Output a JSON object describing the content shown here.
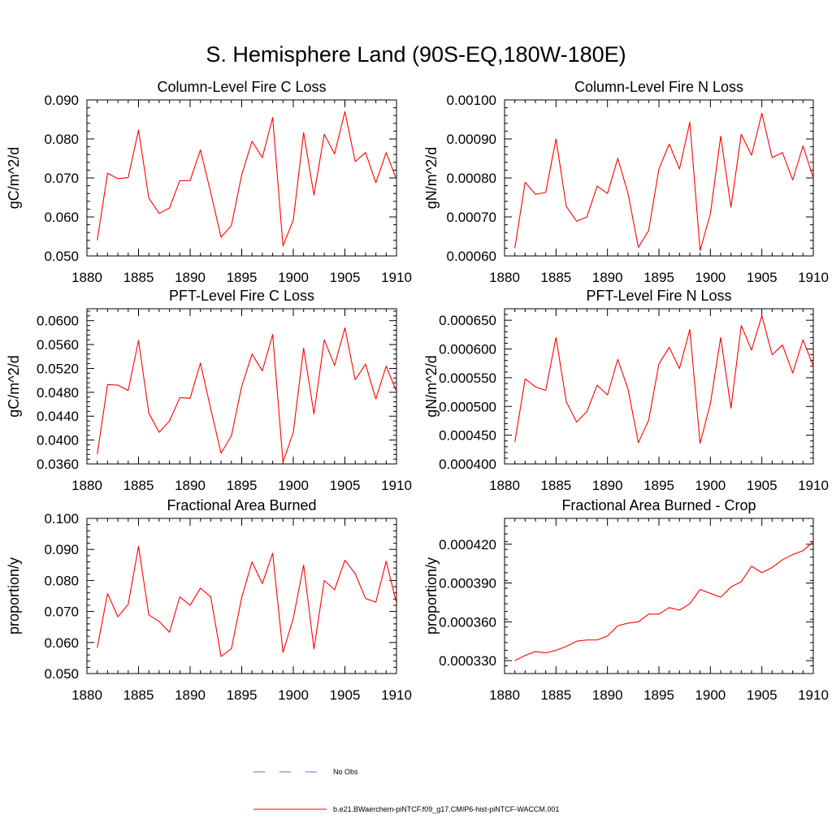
{
  "figure_title": "S. Hemisphere Land (90S-EQ,180W-180E)",
  "colors": {
    "model": "#ff0000",
    "obs": "#6a6adc",
    "axis": "#000000"
  },
  "legend": {
    "obs_label": "No Obs",
    "model_label": "b.e21.BWaerchem-piNTCF.f09_g17.CMIP6-hist-piNTCF-WACCM.001"
  },
  "chart_data": [
    {
      "type": "line",
      "title": "Column-Level Fire C Loss",
      "ylabel": "gC/m^2/d",
      "xlabel": "",
      "xlim": [
        1880,
        1910
      ],
      "ylim": [
        0.05,
        0.09
      ],
      "x_ticks": [
        "1880",
        "1885",
        "1890",
        "1895",
        "1900",
        "1905",
        "1910"
      ],
      "y_ticks": [
        "0.050",
        "0.060",
        "0.070",
        "0.080",
        "0.090"
      ],
      "x": [
        1881,
        1882,
        1883,
        1884,
        1885,
        1886,
        1887,
        1888,
        1889,
        1890,
        1891,
        1892,
        1893,
        1894,
        1895,
        1896,
        1897,
        1898,
        1899,
        1900,
        1901,
        1902,
        1903,
        1904,
        1905,
        1906,
        1907,
        1908,
        1909,
        1910
      ],
      "series": [
        {
          "values": [
            0.054,
            0.0712,
            0.0698,
            0.0701,
            0.0823,
            0.0648,
            0.0609,
            0.0623,
            0.0693,
            0.0693,
            0.0772,
            0.0662,
            0.0548,
            0.0578,
            0.0708,
            0.0794,
            0.0752,
            0.0855,
            0.0526,
            0.0592,
            0.0816,
            0.0656,
            0.0812,
            0.0762,
            0.087,
            0.0742,
            0.0765,
            0.0688,
            0.0765,
            0.0696
          ]
        }
      ]
    },
    {
      "type": "line",
      "title": "Column-Level Fire N Loss",
      "ylabel": "gN/m^2/d",
      "xlabel": "",
      "xlim": [
        1880,
        1910
      ],
      "ylim": [
        0.0006,
        0.001
      ],
      "x_ticks": [
        "1880",
        "1885",
        "1890",
        "1895",
        "1900",
        "1905",
        "1910"
      ],
      "y_ticks": [
        "0.00060",
        "0.00070",
        "0.00080",
        "0.00090",
        "0.00100"
      ],
      "x": [
        1881,
        1882,
        1883,
        1884,
        1885,
        1886,
        1887,
        1888,
        1889,
        1890,
        1891,
        1892,
        1893,
        1894,
        1895,
        1896,
        1897,
        1898,
        1899,
        1900,
        1901,
        1902,
        1903,
        1904,
        1905,
        1906,
        1907,
        1908,
        1909,
        1910
      ],
      "series": [
        {
          "values": [
            0.00062,
            0.000789,
            0.000758,
            0.000763,
            0.0009,
            0.000727,
            0.000689,
            0.0007,
            0.000779,
            0.00076,
            0.00085,
            0.00076,
            0.000622,
            0.000665,
            0.000823,
            0.000887,
            0.000823,
            0.000943,
            0.000614,
            0.000708,
            0.000907,
            0.000725,
            0.000912,
            0.000858,
            0.000966,
            0.000852,
            0.000865,
            0.000795,
            0.000882,
            0.0008
          ]
        }
      ]
    },
    {
      "type": "line",
      "title": "PFT-Level Fire C Loss",
      "ylabel": "gC/m^2/d",
      "xlabel": "",
      "xlim": [
        1880,
        1910
      ],
      "ylim": [
        0.036,
        0.062
      ],
      "x_ticks": [
        "1880",
        "1885",
        "1890",
        "1895",
        "1900",
        "1905",
        "1910"
      ],
      "y_ticks": [
        "0.0360",
        "0.0400",
        "0.0440",
        "0.0480",
        "0.0520",
        "0.0560",
        "0.0600"
      ],
      "x": [
        1881,
        1882,
        1883,
        1884,
        1885,
        1886,
        1887,
        1888,
        1889,
        1890,
        1891,
        1892,
        1893,
        1894,
        1895,
        1896,
        1897,
        1898,
        1899,
        1900,
        1901,
        1902,
        1903,
        1904,
        1905,
        1906,
        1907,
        1908,
        1909,
        1910
      ],
      "series": [
        {
          "values": [
            0.0376,
            0.0493,
            0.0492,
            0.0483,
            0.0567,
            0.0445,
            0.0413,
            0.0432,
            0.0471,
            0.047,
            0.0529,
            0.0452,
            0.0378,
            0.0407,
            0.049,
            0.0544,
            0.0516,
            0.0577,
            0.0363,
            0.0413,
            0.0554,
            0.0444,
            0.0568,
            0.0525,
            0.0588,
            0.0501,
            0.0527,
            0.0469,
            0.0524,
            0.0481
          ]
        }
      ]
    },
    {
      "type": "line",
      "title": "PFT-Level Fire N Loss",
      "ylabel": "gN/m^2/d",
      "xlabel": "",
      "xlim": [
        1880,
        1910
      ],
      "ylim": [
        0.0004,
        0.00067
      ],
      "x_ticks": [
        "1880",
        "1885",
        "1890",
        "1895",
        "1900",
        "1905",
        "1910"
      ],
      "y_ticks": [
        "0.000400",
        "0.000450",
        "0.000500",
        "0.000550",
        "0.000600",
        "0.000650"
      ],
      "x": [
        1881,
        1882,
        1883,
        1884,
        1885,
        1886,
        1887,
        1888,
        1889,
        1890,
        1891,
        1892,
        1893,
        1894,
        1895,
        1896,
        1897,
        1898,
        1899,
        1900,
        1901,
        1902,
        1903,
        1904,
        1905,
        1906,
        1907,
        1908,
        1909,
        1910
      ],
      "series": [
        {
          "values": [
            0.000438,
            0.000548,
            0.000534,
            0.000528,
            0.00062,
            0.000508,
            0.000473,
            0.000491,
            0.000537,
            0.00052,
            0.000582,
            0.00053,
            0.000437,
            0.000476,
            0.000574,
            0.000603,
            0.000566,
            0.000634,
            0.000436,
            0.000505,
            0.00062,
            0.000497,
            0.000641,
            0.000598,
            0.000658,
            0.00059,
            0.000607,
            0.000558,
            0.000616,
            0.00057
          ]
        }
      ]
    },
    {
      "type": "line",
      "title": "Fractional Area Burned",
      "ylabel": "proportion/y",
      "xlabel": "",
      "xlim": [
        1880,
        1910
      ],
      "ylim": [
        0.05,
        0.1
      ],
      "x_ticks": [
        "1880",
        "1885",
        "1890",
        "1895",
        "1900",
        "1905",
        "1910"
      ],
      "y_ticks": [
        "0.050",
        "0.060",
        "0.070",
        "0.080",
        "0.090",
        "0.100"
      ],
      "x": [
        1881,
        1882,
        1883,
        1884,
        1885,
        1886,
        1887,
        1888,
        1889,
        1890,
        1891,
        1892,
        1893,
        1894,
        1895,
        1896,
        1897,
        1898,
        1899,
        1900,
        1901,
        1902,
        1903,
        1904,
        1905,
        1906,
        1907,
        1908,
        1909,
        1910
      ],
      "series": [
        {
          "values": [
            0.0583,
            0.0758,
            0.0683,
            0.0723,
            0.091,
            0.0689,
            0.0668,
            0.0633,
            0.0747,
            0.072,
            0.0775,
            0.0747,
            0.0555,
            0.058,
            0.0745,
            0.086,
            0.079,
            0.0888,
            0.0568,
            0.0678,
            0.085,
            0.0579,
            0.08,
            0.077,
            0.0865,
            0.0822,
            0.0742,
            0.073,
            0.0862,
            0.0727
          ]
        }
      ]
    },
    {
      "type": "line",
      "title": "Fractional Area Burned - Crop",
      "ylabel": "proportion/y",
      "xlabel": "",
      "xlim": [
        1880,
        1910
      ],
      "ylim": [
        0.00032,
        0.00044
      ],
      "x_ticks": [
        "1880",
        "1885",
        "1890",
        "1895",
        "1900",
        "1905",
        "1910"
      ],
      "y_ticks": [
        "0.000330",
        "0.000360",
        "0.000390",
        "0.000420"
      ],
      "x": [
        1881,
        1882,
        1883,
        1884,
        1885,
        1886,
        1887,
        1888,
        1889,
        1890,
        1891,
        1892,
        1893,
        1894,
        1895,
        1896,
        1897,
        1898,
        1899,
        1900,
        1901,
        1902,
        1903,
        1904,
        1905,
        1906,
        1907,
        1908,
        1909,
        1910
      ],
      "series": [
        {
          "values": [
            0.00033,
            0.000334,
            0.000337,
            0.000336,
            0.000338,
            0.000341,
            0.000345,
            0.000346,
            0.000346,
            0.000349,
            0.000357,
            0.000359,
            0.00036,
            0.000366,
            0.000366,
            0.000371,
            0.000369,
            0.000374,
            0.000385,
            0.000382,
            0.000379,
            0.000387,
            0.000391,
            0.000403,
            0.000398,
            0.000402,
            0.000408,
            0.000412,
            0.000415,
            0.000422
          ]
        }
      ]
    }
  ]
}
